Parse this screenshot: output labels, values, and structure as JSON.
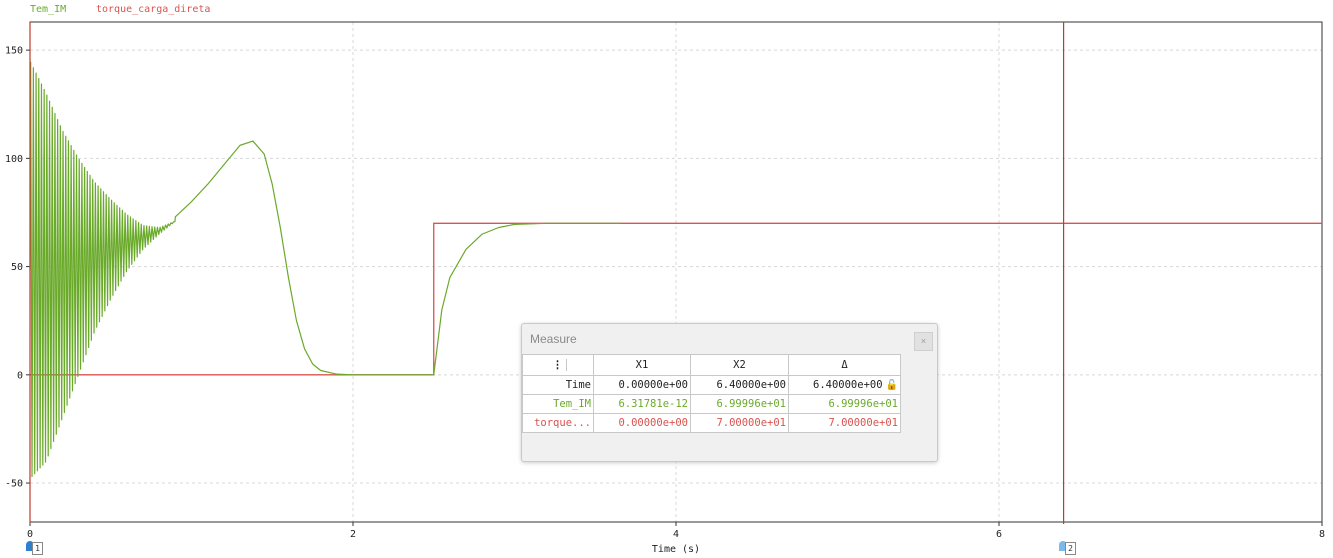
{
  "chart_data": {
    "type": "line",
    "xlabel": "Time (s)",
    "ylabel": "",
    "xlim": [
      0,
      8
    ],
    "ylim": [
      -68,
      163
    ],
    "xticks": [
      0,
      2,
      4,
      6,
      8
    ],
    "yticks": [
      -50,
      0,
      50,
      100,
      150
    ],
    "grid": true,
    "legend_position": "top-left",
    "series": [
      {
        "name": "Tem_IM",
        "color": "#6aaa2a",
        "description_points": {
          "x": [
            0,
            0.1,
            0.2,
            0.3,
            0.4,
            0.5,
            0.6,
            0.7,
            0.8,
            0.9,
            1.0,
            1.1,
            1.2,
            1.3,
            1.38,
            1.45,
            1.5,
            1.55,
            1.6,
            1.65,
            1.7,
            1.75,
            1.8,
            1.9,
            2.0,
            2.5,
            2.52,
            2.55,
            2.6,
            2.7,
            2.8,
            2.9,
            3.0,
            3.2,
            3.66
          ],
          "y": [
            55,
            58,
            62,
            65,
            67,
            67,
            65,
            65,
            68,
            73,
            80,
            88,
            97,
            106,
            108,
            102,
            88,
            68,
            45,
            25,
            12,
            5,
            2,
            0.3,
            0,
            0,
            12,
            30,
            45,
            58,
            65,
            68,
            69.5,
            70,
            70
          ]
        },
        "oscillation": {
          "x_end": 0.9,
          "upper_envelope": [
            [
              0,
              145
            ],
            [
              0.1,
              130
            ],
            [
              0.2,
              113
            ],
            [
              0.3,
              100
            ],
            [
              0.4,
              89
            ],
            [
              0.5,
              81
            ],
            [
              0.6,
              74
            ],
            [
              0.7,
              69
            ],
            [
              0.8,
              68
            ],
            [
              0.9,
              71
            ]
          ],
          "lower_envelope": [
            [
              0,
              -48
            ],
            [
              0,
              -48
            ],
            [
              0.1,
              -40
            ],
            [
              0.2,
              -20
            ],
            [
              0.3,
              0
            ],
            [
              0.4,
              20
            ],
            [
              0.5,
              35
            ],
            [
              0.6,
              48
            ],
            [
              0.7,
              58
            ],
            [
              0.8,
              65
            ],
            [
              0.9,
              71
            ]
          ],
          "period": 0.0167
        }
      },
      {
        "name": "torque_carga_direta",
        "color": "#d9534f",
        "step": {
          "x": [
            0,
            2.5,
            2.5,
            8
          ],
          "y": [
            0,
            0,
            70,
            70
          ]
        }
      }
    ],
    "cursors": [
      {
        "label": "1",
        "x": 0
      },
      {
        "label": "2",
        "x": 6.4
      }
    ],
    "tick_labels_x": [
      "0",
      "2",
      "4",
      "6",
      "8"
    ],
    "tick_labels_y": [
      "-50",
      "0",
      "50",
      "100",
      "150"
    ]
  },
  "legend": [
    {
      "label": "Tem_IM",
      "color": "#6aaa2a"
    },
    {
      "label": "torque_carga_direta",
      "color": "#d9534f"
    }
  ],
  "measure": {
    "title": "Measure",
    "close_label": "×",
    "columns": [
      "X1",
      "X2",
      "Δ"
    ],
    "rows": [
      {
        "label": "Time",
        "x1": "0.00000e+00",
        "x2": "6.40000e+00",
        "delta": "6.40000e+00",
        "color": "#222222"
      },
      {
        "label": "Tem_IM",
        "x1": "6.31781e-12",
        "x2": "6.99996e+01",
        "delta": "6.99996e+01",
        "color": "#6aaa2a"
      },
      {
        "label": "torque...",
        "x1": "0.00000e+00",
        "x2": "7.00000e+01",
        "delta": "7.00000e+01",
        "color": "#d9534f"
      }
    ],
    "icons": {
      "menu": "menu-dots-icon",
      "lock": "lock-icon"
    }
  }
}
